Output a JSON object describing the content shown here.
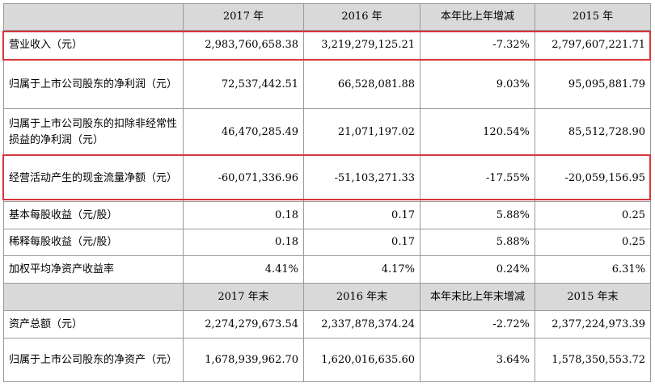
{
  "colors": {
    "header_bg": "#d9d9d9",
    "border": "#9a9a9a",
    "highlight_border": "#d8363d"
  },
  "header1": {
    "label_col": "",
    "cols": [
      "2017 年",
      "2016 年",
      "本年比上年增减",
      "2015 年"
    ]
  },
  "rows1": [
    {
      "label": "营业收入（元）",
      "values": [
        "2,983,760,658.38",
        "3,219,279,125.21",
        "-7.32%",
        "2,797,607,221.71"
      ]
    },
    {
      "label": "归属于上市公司股东的净利润（元）",
      "values": [
        "72,537,442.51",
        "66,528,081.88",
        "9.03%",
        "95,095,881.79"
      ]
    },
    {
      "label": "归属于上市公司股东的扣除非经常性损益的净利润（元）",
      "values": [
        "46,470,285.49",
        "21,071,197.02",
        "120.54%",
        "85,512,728.90"
      ]
    },
    {
      "label": "经营活动产生的现金流量净额（元）",
      "values": [
        "-60,071,336.96",
        "-51,103,271.33",
        "-17.55%",
        "-20,059,156.95"
      ]
    },
    {
      "label": "基本每股收益（元/股）",
      "values": [
        "0.18",
        "0.17",
        "5.88%",
        "0.25"
      ]
    },
    {
      "label": "稀释每股收益（元/股）",
      "values": [
        "0.18",
        "0.17",
        "5.88%",
        "0.25"
      ]
    },
    {
      "label": "加权平均净资产收益率",
      "values": [
        "4.41%",
        "4.17%",
        "0.24%",
        "6.31%"
      ]
    }
  ],
  "header2": {
    "label_col": "",
    "cols": [
      "2017 年末",
      "2016 年末",
      "本年末比上年末增减",
      "2015 年末"
    ]
  },
  "rows2": [
    {
      "label": "资产总额（元）",
      "values": [
        "2,274,279,673.54",
        "2,337,878,374.24",
        "-2.72%",
        "2,377,224,973.39"
      ]
    },
    {
      "label": "归属于上市公司股东的净资产（元）",
      "values": [
        "1,678,939,962.70",
        "1,620,016,635.60",
        "3.64%",
        "1,578,350,553.72"
      ]
    }
  ]
}
